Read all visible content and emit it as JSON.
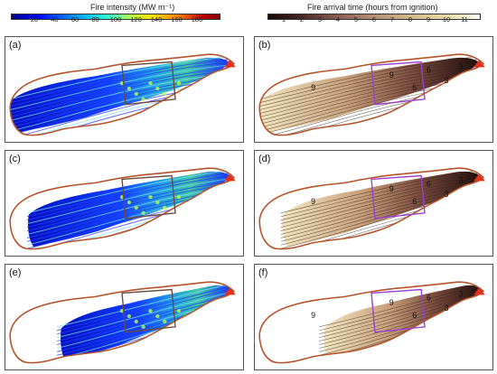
{
  "colorbars": {
    "intensity": {
      "title": "Fire intensity (MW m⁻¹)",
      "ticks": [
        "20",
        "40",
        "60",
        "80",
        "100",
        "120",
        "140",
        "160",
        "180"
      ]
    },
    "arrival": {
      "title": "Fire arrival time (hours from ignition)",
      "ticks": [
        "1",
        "2",
        "3",
        "4",
        "5",
        "6",
        "7",
        "8",
        "9",
        "10",
        "11"
      ]
    }
  },
  "panels": [
    {
      "label": "(a)",
      "type": "intensity",
      "fill": 1.0
    },
    {
      "label": "(b)",
      "type": "arrival",
      "fill": 1.0
    },
    {
      "label": "(c)",
      "type": "intensity",
      "fill": 0.92
    },
    {
      "label": "(d)",
      "type": "arrival",
      "fill": 0.9
    },
    {
      "label": "(e)",
      "type": "intensity",
      "fill": 0.78
    },
    {
      "label": "(f)",
      "type": "arrival",
      "fill": 0.72
    }
  ],
  "contour_labels": [
    "9",
    "9",
    "6",
    "6",
    "3",
    "3"
  ],
  "colors": {
    "perimeter": "#b5532a",
    "rect": "#9a3fd0",
    "ignition": "#e0301e"
  }
}
